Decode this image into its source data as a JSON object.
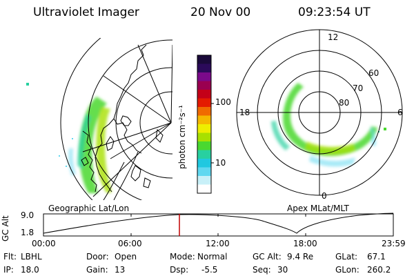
{
  "header": {
    "instrument": "Ultraviolet Imager",
    "date": "20 Nov 00",
    "time": "09:23:54 UT"
  },
  "colorbar": {
    "label": "photon cm⁻²s⁻¹",
    "ticks": [
      "100",
      "10"
    ],
    "colors": [
      "#1a0a3a",
      "#2b0a5a",
      "#7a0a8a",
      "#9a0050",
      "#c40018",
      "#e41a00",
      "#f06a00",
      "#f5b800",
      "#eeee00",
      "#a8e000",
      "#4ad830",
      "#28d0a0",
      "#20c8e0",
      "#60d8f0",
      "#c8f0f8",
      "#ffffff"
    ]
  },
  "polar": {
    "mlt_labels": [
      "12",
      "18",
      "6",
      "0"
    ],
    "lat_labels": [
      "60",
      "70",
      "80"
    ]
  },
  "timeline": {
    "ylabel": "GC Alt",
    "yticks": [
      "9.0",
      "1.8"
    ],
    "left_title": "Geographic Lat/Lon",
    "right_title": "Apex MLat/MLT",
    "xticks": [
      "00:00",
      "06:00",
      "12:00",
      "18:00",
      "23:59"
    ],
    "marker_color": "#c00000"
  },
  "info": {
    "row1": [
      {
        "label": "Flt:",
        "value": "LBHL"
      },
      {
        "label": "Door:",
        "value": "Open"
      },
      {
        "label": "Mode:",
        "value": "Normal"
      },
      {
        "label": "GC Alt:",
        "value": "9.4 Re"
      },
      {
        "label": "GLat:",
        "value": "67.1"
      }
    ],
    "row2": [
      {
        "label": "IP:",
        "value": "18.0"
      },
      {
        "label": "Gain:",
        "value": "13"
      },
      {
        "label": "Dsp:",
        "value": "-5.5"
      },
      {
        "label": "Seq:",
        "value": "30"
      },
      {
        "label": "GLon:",
        "value": "260.2"
      }
    ]
  }
}
